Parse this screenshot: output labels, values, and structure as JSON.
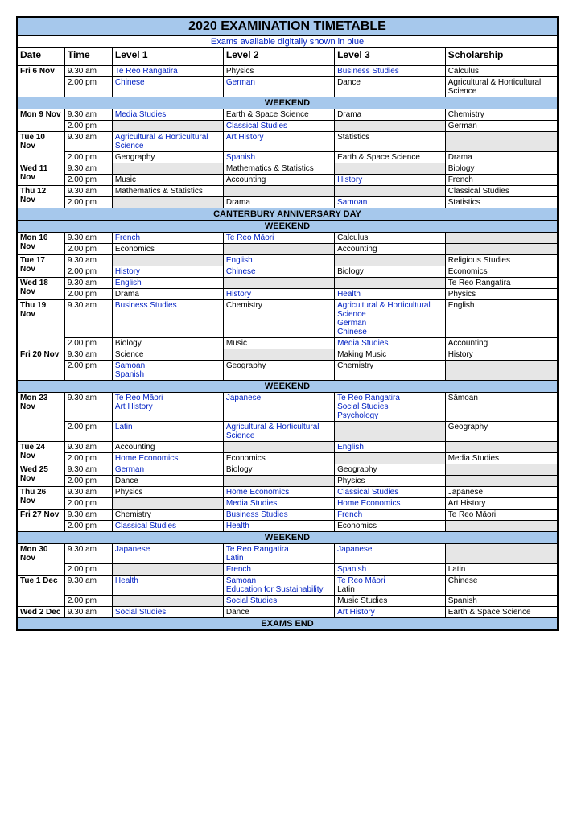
{
  "title": "2020 EXAMINATION TIMETABLE",
  "subtitle": "Exams available digitally shown in blue",
  "headers": {
    "date": "Date",
    "time": "Time",
    "l1": "Level 1",
    "l2": "Level 2",
    "l3": "Level 3",
    "sch": "Scholarship"
  },
  "bands": {
    "weekend": "WEEKEND",
    "cant": "CANTERBURY ANNIVERSARY DAY",
    "end": "EXAMS END"
  },
  "rows": {
    "fri6a": {
      "date": "Fri 6 Nov",
      "time": "9.30 am",
      "l1": "Te Reo Rangatira",
      "l2": "Physics",
      "l3": "Business Studies",
      "sch": "Calculus"
    },
    "fri6p": {
      "time": "2.00 pm",
      "l1": "Chinese",
      "l2": "German",
      "l3": "Dance",
      "sch": "Agricultural & Horticultural Science"
    },
    "mon9a": {
      "date": "Mon 9 Nov",
      "time": "9.30 am",
      "l1": "Media Studies",
      "l2": "Earth & Space Science",
      "l3": "Drama",
      "sch": "Chemistry"
    },
    "mon9p": {
      "time": "2.00 pm",
      "l2": "Classical Studies",
      "sch": "German"
    },
    "tue10a": {
      "date": "Tue 10 Nov",
      "time": "9.30 am",
      "l1": "Agricultural & Horticultural Science",
      "l2": "Art History",
      "l3": "Statistics"
    },
    "tue10p": {
      "time": "2.00 pm",
      "l1": "Geography",
      "l2": "Spanish",
      "l3": "Earth & Space Science",
      "sch": "Drama"
    },
    "wed11a": {
      "date": "Wed 11 Nov",
      "time": "9.30 am",
      "l2": "Mathematics & Statistics",
      "sch": "Biology"
    },
    "wed11p": {
      "time": "2.00 pm",
      "l1": "Music",
      "l2": "Accounting",
      "l3": "History",
      "sch": "French"
    },
    "thu12a": {
      "date": "Thu 12 Nov",
      "time": "9.30 am",
      "l1": "Mathematics & Statistics",
      "sch": "Classical Studies"
    },
    "thu12p": {
      "time": "2.00 pm",
      "l2": "Drama",
      "l3": "Samoan",
      "sch": "Statistics"
    },
    "mon16a": {
      "date": "Mon 16 Nov",
      "time": "9.30 am",
      "l1": "French",
      "l2": "Te Reo Māori",
      "l3": "Calculus"
    },
    "mon16p": {
      "time": "2.00 pm",
      "l1": "Economics",
      "l3": "Accounting"
    },
    "tue17a": {
      "date": "Tue 17 Nov",
      "time": "9.30 am",
      "l2": "English",
      "sch": "Religious Studies"
    },
    "tue17p": {
      "time": "2.00 pm",
      "l1": "History",
      "l2": "Chinese",
      "l3": "Biology",
      "sch": "Economics"
    },
    "wed18a": {
      "date": "Wed 18 Nov",
      "time": "9.30 am",
      "l1": "English",
      "sch": "Te Reo Rangatira"
    },
    "wed18p": {
      "time": "2.00 pm",
      "l1": "Drama",
      "l2": "History",
      "l3": "Health",
      "sch": "Physics"
    },
    "thu19a": {
      "date": "Thu 19 Nov",
      "time": "9.30 am",
      "l1": "Business Studies",
      "l2": "Chemistry",
      "l3a": "Agricultural & Horticultural Science",
      "l3b": "German",
      "l3c": "Chinese",
      "sch": "English"
    },
    "thu19p": {
      "time": "2.00 pm",
      "l1": "Biology",
      "l2": "Music",
      "l3": "Media Studies",
      "sch": "Accounting"
    },
    "fri20a": {
      "date": "Fri 20 Nov",
      "time": "9.30 am",
      "l1": "Science",
      "l3": "Making Music",
      "sch": "History"
    },
    "fri20p": {
      "time": "2.00 pm",
      "l1a": "Samoan",
      "l1b": "Spanish",
      "l2": "Geography",
      "l3": "Chemistry"
    },
    "mon23a": {
      "date": "Mon 23 Nov",
      "time": "9.30 am",
      "l1a": "Te Reo Māori",
      "l1b": "Art History",
      "l2": "Japanese",
      "l3a": "Te Reo Rangatira",
      "l3b": "Social Studies",
      "l3c": "Psychology",
      "sch": "Sāmoan"
    },
    "mon23p": {
      "time": "2.00 pm",
      "l1": "Latin",
      "l2": "Agricultural & Horticultural Science",
      "sch": "Geography"
    },
    "tue24a": {
      "date": "Tue 24 Nov",
      "time": "9.30 am",
      "l1": "Accounting",
      "l3": "English"
    },
    "tue24p": {
      "time": "2.00 pm",
      "l1": "Home Economics",
      "l2": "Economics",
      "sch": "Media Studies"
    },
    "wed25a": {
      "date": "Wed 25 Nov",
      "time": "9.30 am",
      "l1": "German",
      "l2": "Biology",
      "l3": "Geography"
    },
    "wed25p": {
      "time": "2.00 pm",
      "l1": "Dance",
      "l3": "Physics"
    },
    "thu26a": {
      "date": "Thu 26 Nov",
      "time": "9.30 am",
      "l1": "Physics",
      "l2": "Home Economics",
      "l3": "Classical Studies",
      "sch": "Japanese"
    },
    "thu26p": {
      "time": "2.00 pm",
      "l2": "Media Studies",
      "l3": "Home Economics",
      "sch": "Art History"
    },
    "fri27a": {
      "date": "Fri 27 Nov",
      "time": "9.30 am",
      "l1": "Chemistry",
      "l2": "Business Studies",
      "l3": "French",
      "sch": "Te Reo Māori"
    },
    "fri27p": {
      "time": "2.00 pm",
      "l1": "Classical Studies",
      "l2": "Health",
      "l3": "Economics"
    },
    "mon30a": {
      "date": "Mon 30 Nov",
      "time": "9.30 am",
      "l1": "Japanese",
      "l2a": "Te Reo Rangatira",
      "l2b": "Latin",
      "l3": "Japanese"
    },
    "mon30p": {
      "time": "2.00 pm",
      "l2": "French",
      "l3": "Spanish",
      "sch": "Latin"
    },
    "tue1a": {
      "date": "Tue 1 Dec",
      "time": "9.30 am",
      "l1": "Health",
      "l2a": "Samoan",
      "l2b": "Education for Sustainability",
      "l3a": "Te Reo Māori",
      "l3b": "Latin",
      "sch": "Chinese"
    },
    "tue1p": {
      "time": "2.00 pm",
      "l2": "Social Studies",
      "l3": "Music Studies",
      "sch": "Spanish"
    },
    "wed2a": {
      "date": "Wed 2 Dec",
      "time": "9.30 am",
      "l1": "Social Studies",
      "l2": "Dance",
      "l3": "Art History",
      "sch": "Earth & Space Science"
    }
  },
  "colors": {
    "band_bg": "#a6c8ec",
    "blue_text": "#0020c2"
  }
}
